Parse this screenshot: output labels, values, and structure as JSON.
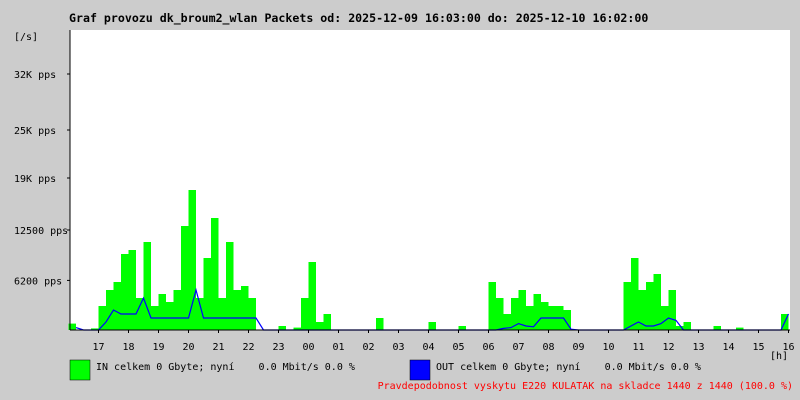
{
  "chart_data": {
    "type": "area",
    "title": "Graf provozu dk_broum2_wlan Packets od: 2025-12-09 16:03:00 do: 2025-12-10 16:02:00",
    "y_unit_label": "[/s]",
    "x_unit_label": "[h]",
    "footnote": "Pravdepodobnost vyskytu E220 KULATAK na skladce 1440 z 1440 (100.0 %)",
    "xlim": [
      16.05,
      40.05
    ],
    "xticks": [
      {
        "value": 17,
        "label": "17"
      },
      {
        "value": 18,
        "label": "18"
      },
      {
        "value": 19,
        "label": "19"
      },
      {
        "value": 20,
        "label": "20"
      },
      {
        "value": 21,
        "label": "21"
      },
      {
        "value": 22,
        "label": "22"
      },
      {
        "value": 23,
        "label": "23"
      },
      {
        "value": 24,
        "label": "00"
      },
      {
        "value": 25,
        "label": "01"
      },
      {
        "value": 26,
        "label": "02"
      },
      {
        "value": 27,
        "label": "03"
      },
      {
        "value": 28,
        "label": "04"
      },
      {
        "value": 29,
        "label": "05"
      },
      {
        "value": 30,
        "label": "06"
      },
      {
        "value": 31,
        "label": "07"
      },
      {
        "value": 32,
        "label": "08"
      },
      {
        "value": 33,
        "label": "09"
      },
      {
        "value": 34,
        "label": "10"
      },
      {
        "value": 35,
        "label": "11"
      },
      {
        "value": 36,
        "label": "12"
      },
      {
        "value": 37,
        "label": "13"
      },
      {
        "value": 38,
        "label": "14"
      },
      {
        "value": 39,
        "label": "15"
      },
      {
        "value": 40,
        "label": "16"
      }
    ],
    "ylim": [
      0,
      37500
    ],
    "yticks": [
      {
        "value": 6200,
        "label": "6200 pps"
      },
      {
        "value": 12500,
        "label": "12500 pps"
      },
      {
        "value": 19000,
        "label": "19K pps"
      },
      {
        "value": 25000,
        "label": "25K pps"
      },
      {
        "value": 32000,
        "label": "32K pps"
      }
    ],
    "grid": false,
    "x": [
      16.25,
      16.5,
      16.75,
      17,
      17.25,
      17.5,
      17.75,
      18,
      18.25,
      18.5,
      18.75,
      19,
      19.25,
      19.5,
      19.75,
      20,
      20.25,
      20.5,
      20.75,
      21,
      21.25,
      21.5,
      21.75,
      22,
      22.25,
      22.5,
      22.75,
      23,
      23.25,
      23.5,
      23.75,
      24,
      24.25,
      24.5,
      24.75,
      25,
      25.25,
      25.5,
      25.75,
      26,
      26.25,
      26.5,
      26.75,
      27,
      27.25,
      27.5,
      27.75,
      28,
      28.25,
      28.5,
      28.75,
      29,
      29.25,
      29.5,
      29.75,
      30,
      30.25,
      30.5,
      30.75,
      31,
      31.25,
      31.5,
      31.75,
      32,
      32.25,
      32.5,
      32.75,
      33,
      33.25,
      33.5,
      33.75,
      34,
      34.25,
      34.5,
      34.75,
      35,
      35.25,
      35.5,
      35.75,
      36,
      36.25,
      36.5,
      36.75,
      37,
      37.25,
      37.5,
      37.75,
      38,
      38.25,
      38.5,
      38.75,
      39,
      39.25,
      39.5,
      39.75,
      40
    ],
    "series": [
      {
        "name": "IN celkem 0 Gbyte; nyní    0.0 Mbit/s 0.0 %",
        "color": "#00ff00",
        "values": [
          800,
          0,
          0,
          200,
          3000,
          5000,
          6000,
          9500,
          10000,
          4000,
          11000,
          3000,
          4500,
          3500,
          5000,
          13000,
          17500,
          4000,
          9000,
          14000,
          4000,
          11000,
          5000,
          5500,
          4000,
          0,
          0,
          0,
          500,
          0,
          300,
          4000,
          8500,
          1000,
          2000,
          0,
          0,
          0,
          0,
          0,
          0,
          1500,
          0,
          0,
          0,
          0,
          0,
          0,
          1000,
          0,
          0,
          0,
          500,
          0,
          0,
          0,
          6000,
          4000,
          2000,
          4000,
          5000,
          3000,
          4500,
          3500,
          3000,
          3000,
          2500,
          0,
          0,
          0,
          0,
          0,
          0,
          0,
          6000,
          9000,
          5000,
          6000,
          7000,
          3000,
          5000,
          500,
          1000,
          0,
          0,
          0,
          500,
          0,
          0,
          300,
          0,
          0,
          0,
          0,
          0,
          2000
        ]
      },
      {
        "name": "OUT celkem 0 Gbyte; nyní    0.0 Mbit/s 0.0 %",
        "color": "#0000ff",
        "values": [
          300,
          0,
          0,
          0,
          1000,
          2500,
          2000,
          2000,
          2000,
          4000,
          1500,
          1500,
          1500,
          1500,
          1500,
          1500,
          5000,
          1500,
          1500,
          1500,
          1500,
          1500,
          1500,
          1500,
          1500,
          0,
          0,
          0,
          0,
          0,
          0,
          0,
          0,
          0,
          0,
          0,
          0,
          0,
          0,
          0,
          0,
          0,
          0,
          0,
          0,
          0,
          0,
          0,
          0,
          0,
          0,
          0,
          0,
          0,
          0,
          0,
          0,
          200,
          300,
          800,
          500,
          400,
          1500,
          1500,
          1500,
          1500,
          100,
          0,
          0,
          0,
          0,
          0,
          0,
          0,
          500,
          1000,
          500,
          500,
          800,
          1500,
          1200,
          0,
          0,
          0,
          0,
          0,
          0,
          0,
          0,
          0,
          0,
          0,
          0,
          0,
          0,
          2000
        ]
      }
    ]
  }
}
